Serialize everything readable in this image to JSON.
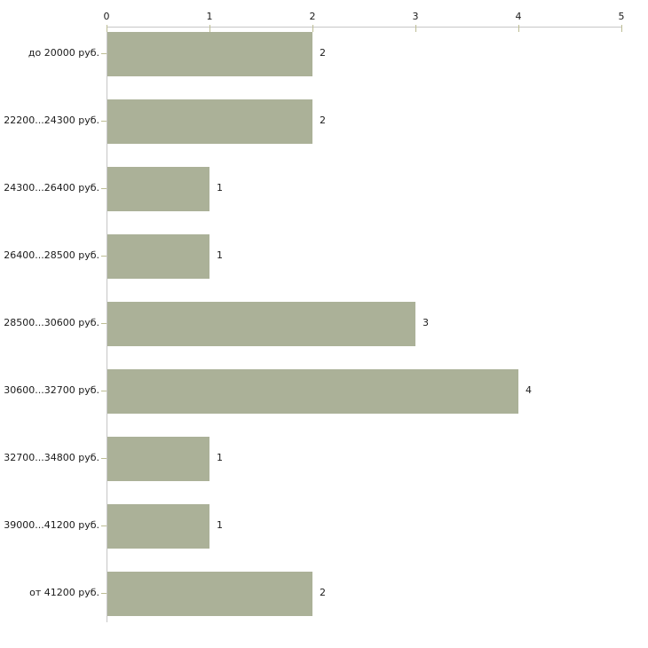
{
  "chart_data": {
    "type": "bar",
    "orientation": "horizontal",
    "title": "",
    "xlabel": "",
    "ylabel": "",
    "categories": [
      "до 20000 руб.",
      "22200...24300 руб.",
      "24300...26400 руб.",
      "26400...28500 руб.",
      "28500...30600 руб.",
      "30600...32700 руб.",
      "32700...34800 руб.",
      "39000...41200 руб.",
      "от 41200 руб."
    ],
    "values": [
      2,
      2,
      1,
      1,
      3,
      4,
      1,
      1,
      2
    ],
    "value_labels": [
      "2",
      "2",
      "1",
      "1",
      "3",
      "4",
      "1",
      "1",
      "2"
    ],
    "xlim": [
      0,
      5
    ],
    "x_ticks": [
      "0",
      "1",
      "2",
      "3",
      "4",
      "5"
    ],
    "axis_position": "top",
    "grid": false,
    "legend": false,
    "colors": {
      "bar": "#abb198",
      "axis_line": "#c6c6c6",
      "tick_mark": "#bdbd94",
      "text": "#1a1a1a",
      "background": "#ffffff"
    }
  }
}
